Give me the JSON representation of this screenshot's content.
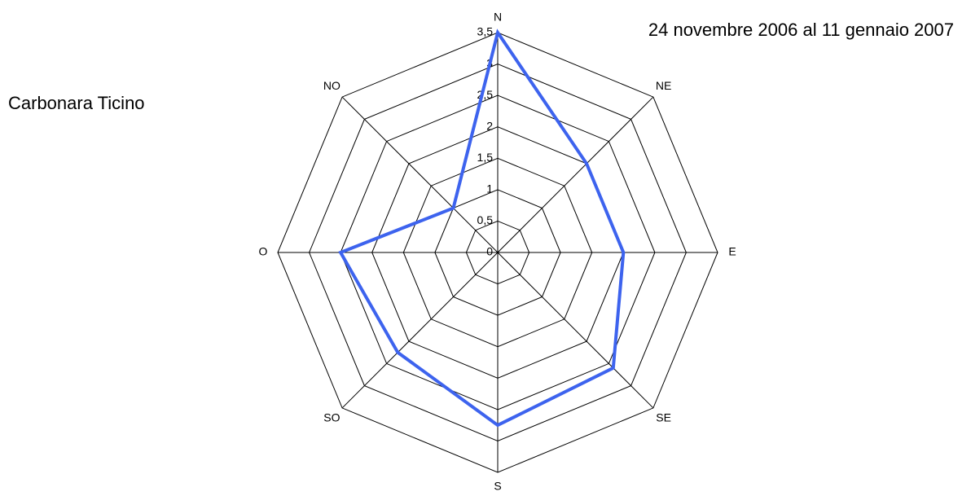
{
  "chart_data": {
    "type": "radar",
    "title": "24 novembre 2006 al 11 gennaio 2007",
    "subtitle": "Carbonara Ticino",
    "categories": [
      "N",
      "NE",
      "E",
      "SE",
      "S",
      "SO",
      "O",
      "NO"
    ],
    "values": [
      3.5,
      2,
      2,
      2.6,
      2.75,
      2.25,
      2.5,
      1
    ],
    "color": "#3d63ee",
    "ylim": [
      0,
      3.5
    ],
    "yticks": [
      0,
      {
        "value": 0.5,
        "label": "0,5"
      },
      1,
      {
        "value": 1.5,
        "label": "1,5"
      },
      2,
      {
        "value": 2.5,
        "label": "2,5"
      },
      3,
      {
        "value": 3.5,
        "label": "3,5"
      }
    ],
    "grid": true
  }
}
